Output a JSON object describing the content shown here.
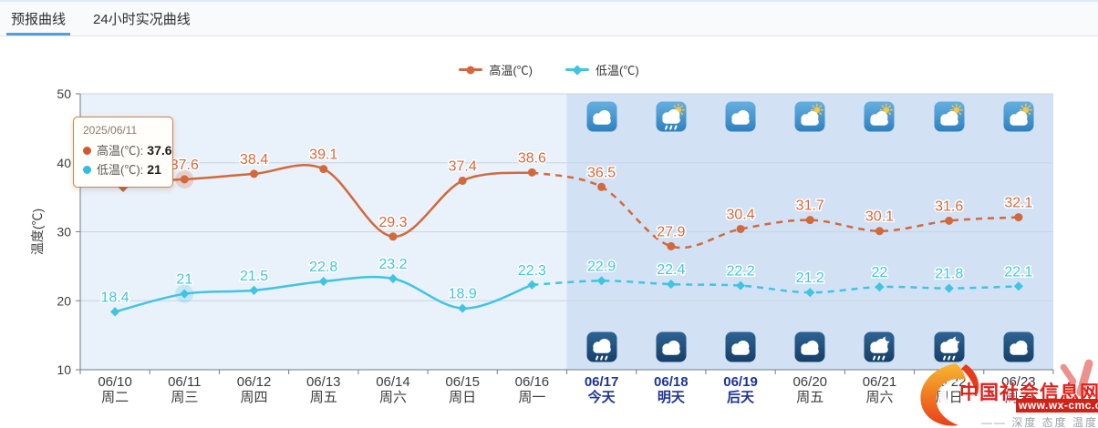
{
  "tabs": {
    "forecast": "预报曲线",
    "actual": "24小时实况曲线"
  },
  "legend": {
    "high": "高温(℃)",
    "low": "低温(℃)"
  },
  "colors": {
    "high": "#d2693c",
    "low": "#41c4e1",
    "history_band": "#e9f1fa",
    "forecast_band": "#d2e2f4",
    "today_label": "#1f3494",
    "axis": "#6f7b87",
    "gridline": "#c9d6e4"
  },
  "y_axis": {
    "title": "温度(℃)",
    "ticks": [
      "50",
      "40",
      "30",
      "20",
      "10"
    ]
  },
  "tooltip": {
    "date": "2025/06/11",
    "high_label": "高温(℃):",
    "high_value": "37.6",
    "low_label": "低温(℃):",
    "low_value": "21"
  },
  "chart_data": {
    "type": "line",
    "title": "",
    "xlabel": "",
    "ylabel": "温度(℃)",
    "ylim": [
      10,
      50
    ],
    "grid": true,
    "legend_position": "top-center",
    "categories": [
      "06/10",
      "06/11",
      "06/12",
      "06/13",
      "06/14",
      "06/15",
      "06/16",
      "06/17",
      "06/18",
      "06/19",
      "06/20",
      "06/21",
      "06/22",
      "06/23"
    ],
    "weekdays": [
      "周二",
      "周三",
      "周四",
      "周五",
      "周六",
      "周日",
      "周一",
      "今天",
      "明天",
      "后天",
      "周五",
      "周六",
      "周日",
      "周一"
    ],
    "series": [
      {
        "name": "高温(℃)",
        "symbol": "circle",
        "color": "#d2693c",
        "values": [
          37.2,
          37.6,
          38.4,
          39.1,
          29.3,
          37.4,
          38.6,
          36.5,
          27.9,
          30.4,
          31.7,
          30.1,
          31.6,
          32.1
        ],
        "label_hidden_indices": [
          0
        ]
      },
      {
        "name": "低温(℃)",
        "symbol": "diamond",
        "color": "#41c4e1",
        "values": [
          18.4,
          21,
          21.5,
          22.8,
          23.2,
          18.9,
          22.3,
          22.9,
          22.4,
          22.2,
          21.2,
          22,
          21.8,
          22.1
        ],
        "label_hidden_indices": []
      }
    ],
    "forecast_dashed_from_index": 6,
    "highlight_day_indices": [
      7,
      8,
      9
    ],
    "hover_index": 1,
    "day_icons": [
      "cloudy",
      "shower-sun",
      "cloudy",
      "cloudy-sun",
      "cloudy-sun",
      "cloudy-sun",
      "cloudy-sun"
    ],
    "night_icons": [
      "rain",
      "cloudy",
      "cloudy",
      "cloudy",
      "moon-rain",
      "moon-rain",
      "cloudy"
    ]
  },
  "watermark": {
    "site_name": "中国社会信息网",
    "site_url": "www.wx-cmc.cn",
    "slogan": "—— 深度 态度 温度"
  }
}
